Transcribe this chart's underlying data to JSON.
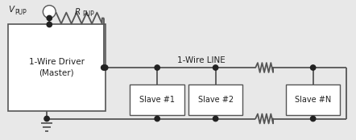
{
  "bg_color": "#e8e8e8",
  "inner_bg": "#ffffff",
  "line_color": "#555555",
  "dot_color": "#222222",
  "text_color": "#222222",
  "fig_width": 4.42,
  "fig_height": 1.74,
  "dpi": 100,
  "master_label": "1-Wire Driver\n(Master)",
  "slave1_label": "Slave #1",
  "slave2_label": "Slave #2",
  "slaveN_label": "Slave #N",
  "wire_line_label": "1-Wire LINE",
  "vpup_label": "V",
  "vpup_sub": "PUP",
  "rpup_label": "R",
  "rpup_sub": "PUP"
}
